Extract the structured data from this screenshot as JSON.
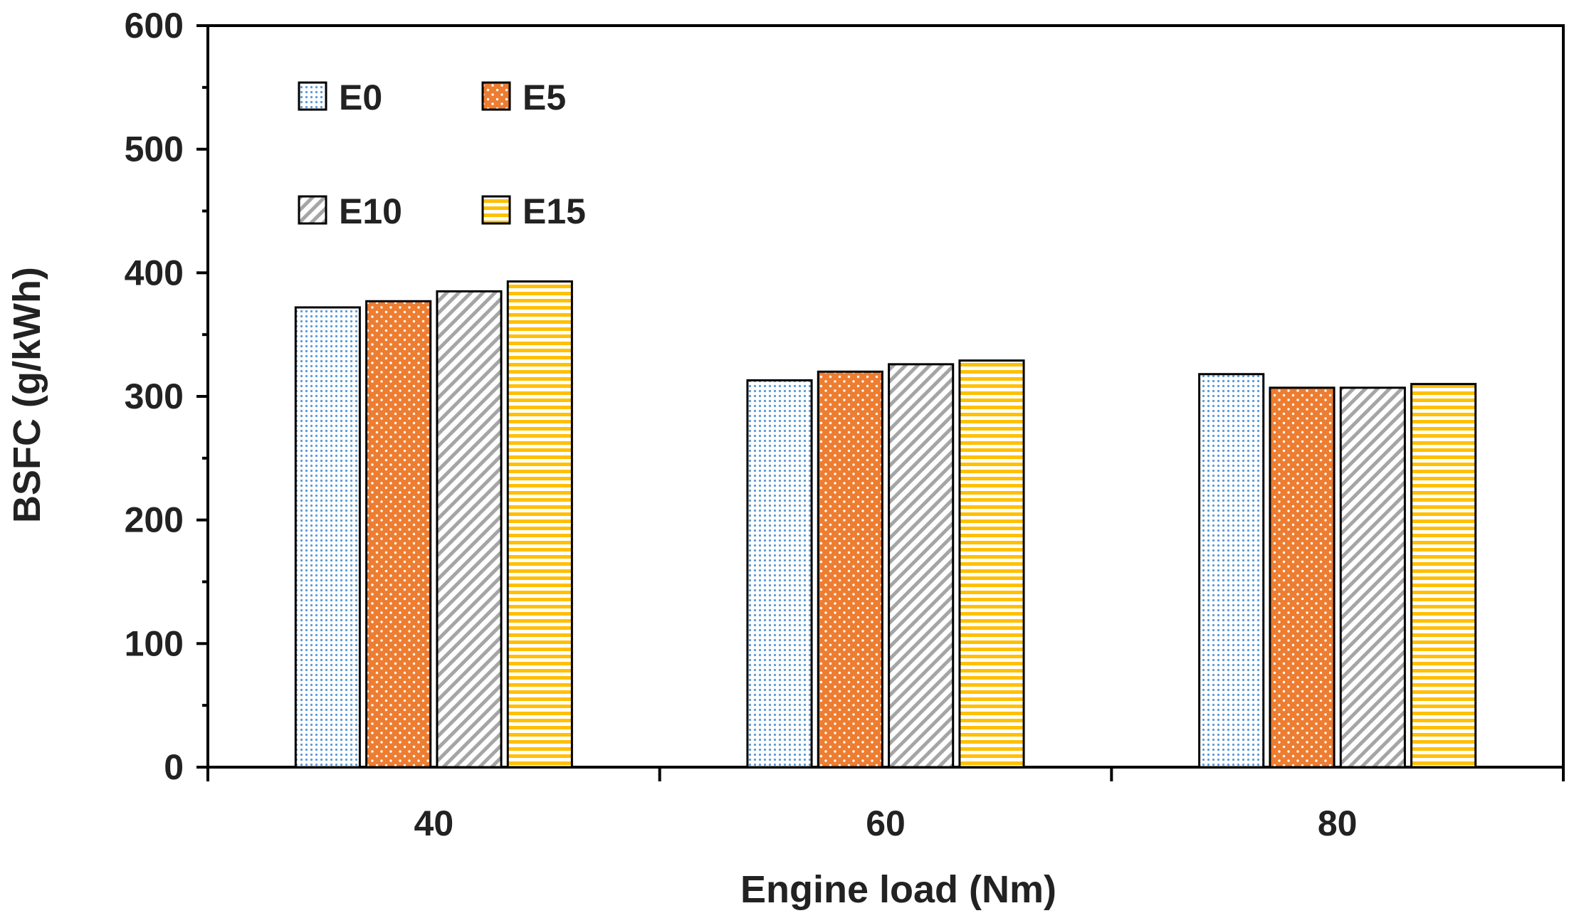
{
  "chart_data": {
    "type": "bar",
    "title": "",
    "xlabel": "Engine load (Nm)",
    "ylabel": "BSFC (g/kWh)",
    "categories": [
      "40",
      "60",
      "80"
    ],
    "ylim": [
      0,
      600
    ],
    "yticks": [
      0,
      100,
      200,
      300,
      400,
      500,
      600
    ],
    "grid": false,
    "legend_position": "top-left",
    "series": [
      {
        "name": "E0",
        "values": [
          372,
          313,
          318
        ],
        "color": "#5b9bd5",
        "pattern": "dots-fine"
      },
      {
        "name": "E5",
        "values": [
          377,
          320,
          307
        ],
        "color": "#ed7d31",
        "pattern": "dots-white"
      },
      {
        "name": "E10",
        "values": [
          385,
          326,
          307
        ],
        "color": "#a5a5a5",
        "pattern": "diagonal"
      },
      {
        "name": "E15",
        "values": [
          393,
          329,
          310
        ],
        "color": "#ffc000",
        "pattern": "horizontal"
      }
    ]
  }
}
